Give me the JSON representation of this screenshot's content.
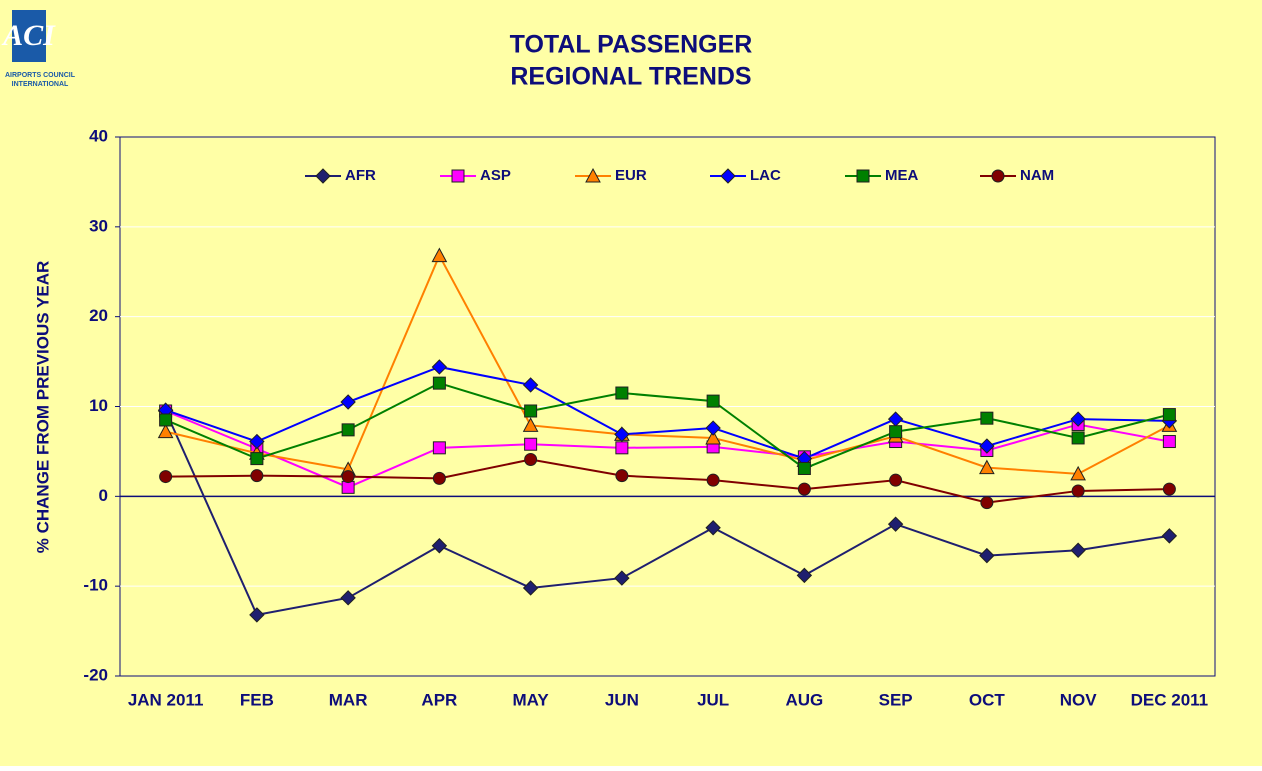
{
  "logo": {
    "mark": "ACI",
    "caption": [
      "AIRPORTS COUNCIL",
      "INTERNATIONAL"
    ]
  },
  "chart_data": {
    "type": "line",
    "title": [
      "TOTAL PASSENGER",
      "REGIONAL TRENDS"
    ],
    "y_label": "% CHANGE FROM PREVIOUS YEAR",
    "categories": [
      "JAN 2011",
      "FEB",
      "MAR",
      "APR",
      "MAY",
      "JUN",
      "JUL",
      "AUG",
      "SEP",
      "OCT",
      "NOV",
      "DEC 2011"
    ],
    "series": [
      {
        "name": "AFR",
        "color": "#1f1f6f",
        "marker": "diamond",
        "values": [
          9.5,
          -13.2,
          -11.3,
          -5.5,
          -10.2,
          -9.1,
          -3.5,
          -8.8,
          -3.1,
          -6.6,
          -6.0,
          -4.4
        ]
      },
      {
        "name": "ASP",
        "color": "#ff00ff",
        "marker": "square",
        "values": [
          9.5,
          5.3,
          1.0,
          5.4,
          5.8,
          5.4,
          5.5,
          4.4,
          6.1,
          5.1,
          8.0,
          6.1
        ]
      },
      {
        "name": "EUR",
        "color": "#ff8000",
        "marker": "triangle",
        "values": [
          7.2,
          4.8,
          3.0,
          26.8,
          7.9,
          6.9,
          6.5,
          4.0,
          6.7,
          3.2,
          2.5,
          7.9
        ]
      },
      {
        "name": "LAC",
        "color": "#0000ff",
        "marker": "diamond",
        "values": [
          9.6,
          6.1,
          10.5,
          14.4,
          12.4,
          6.9,
          7.6,
          4.2,
          8.6,
          5.6,
          8.6,
          8.4
        ]
      },
      {
        "name": "MEA",
        "color": "#008000",
        "marker": "square",
        "values": [
          8.5,
          4.2,
          7.4,
          12.6,
          9.5,
          11.5,
          10.6,
          3.1,
          7.2,
          8.7,
          6.5,
          9.1
        ]
      },
      {
        "name": "NAM",
        "color": "#800000",
        "marker": "circle",
        "values": [
          2.2,
          2.3,
          2.2,
          2.0,
          4.1,
          2.3,
          1.8,
          0.8,
          1.8,
          -0.7,
          0.6,
          0.8
        ]
      }
    ],
    "ylim": [
      -20,
      40
    ],
    "yticks": [
      -20,
      -10,
      0,
      10,
      20,
      30,
      40
    ],
    "grid": true,
    "legend": "top"
  }
}
